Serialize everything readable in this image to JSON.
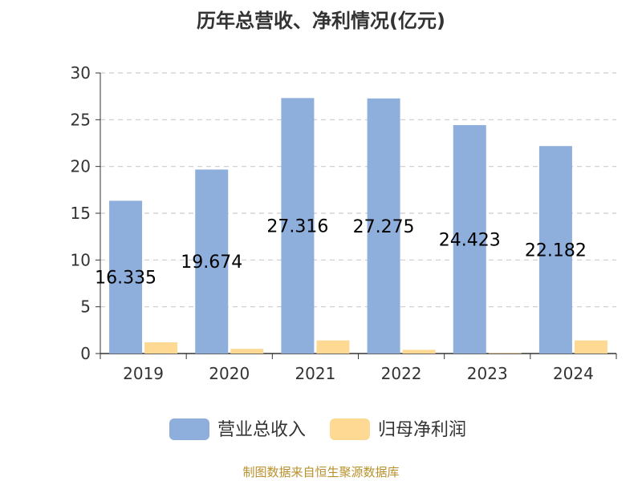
{
  "chart_data": {
    "type": "bar",
    "title": "历年总营收、净利情况(亿元)",
    "categories": [
      "2019",
      "2020",
      "2021",
      "2022",
      "2023",
      "2024"
    ],
    "series": [
      {
        "name": "营业总收入",
        "values": [
          16.335,
          19.674,
          27.316,
          27.275,
          24.423,
          22.182
        ],
        "color": "#8eaedb"
      },
      {
        "name": "归母净利润",
        "values": [
          1.2,
          0.5,
          1.4,
          0.4,
          0.05,
          1.4
        ],
        "color": "#fdd994"
      }
    ],
    "data_labels": [
      "16.335",
      "19.674",
      "27.316",
      "27.275",
      "24.423",
      "22.182"
    ],
    "ylim": [
      0,
      30
    ],
    "yticks": [
      0,
      5,
      10,
      15,
      20,
      25,
      30
    ],
    "xlabel": "",
    "ylabel": "",
    "grid": true,
    "legend_position": "bottom"
  },
  "source": "制图数据来自恒生聚源数据库"
}
